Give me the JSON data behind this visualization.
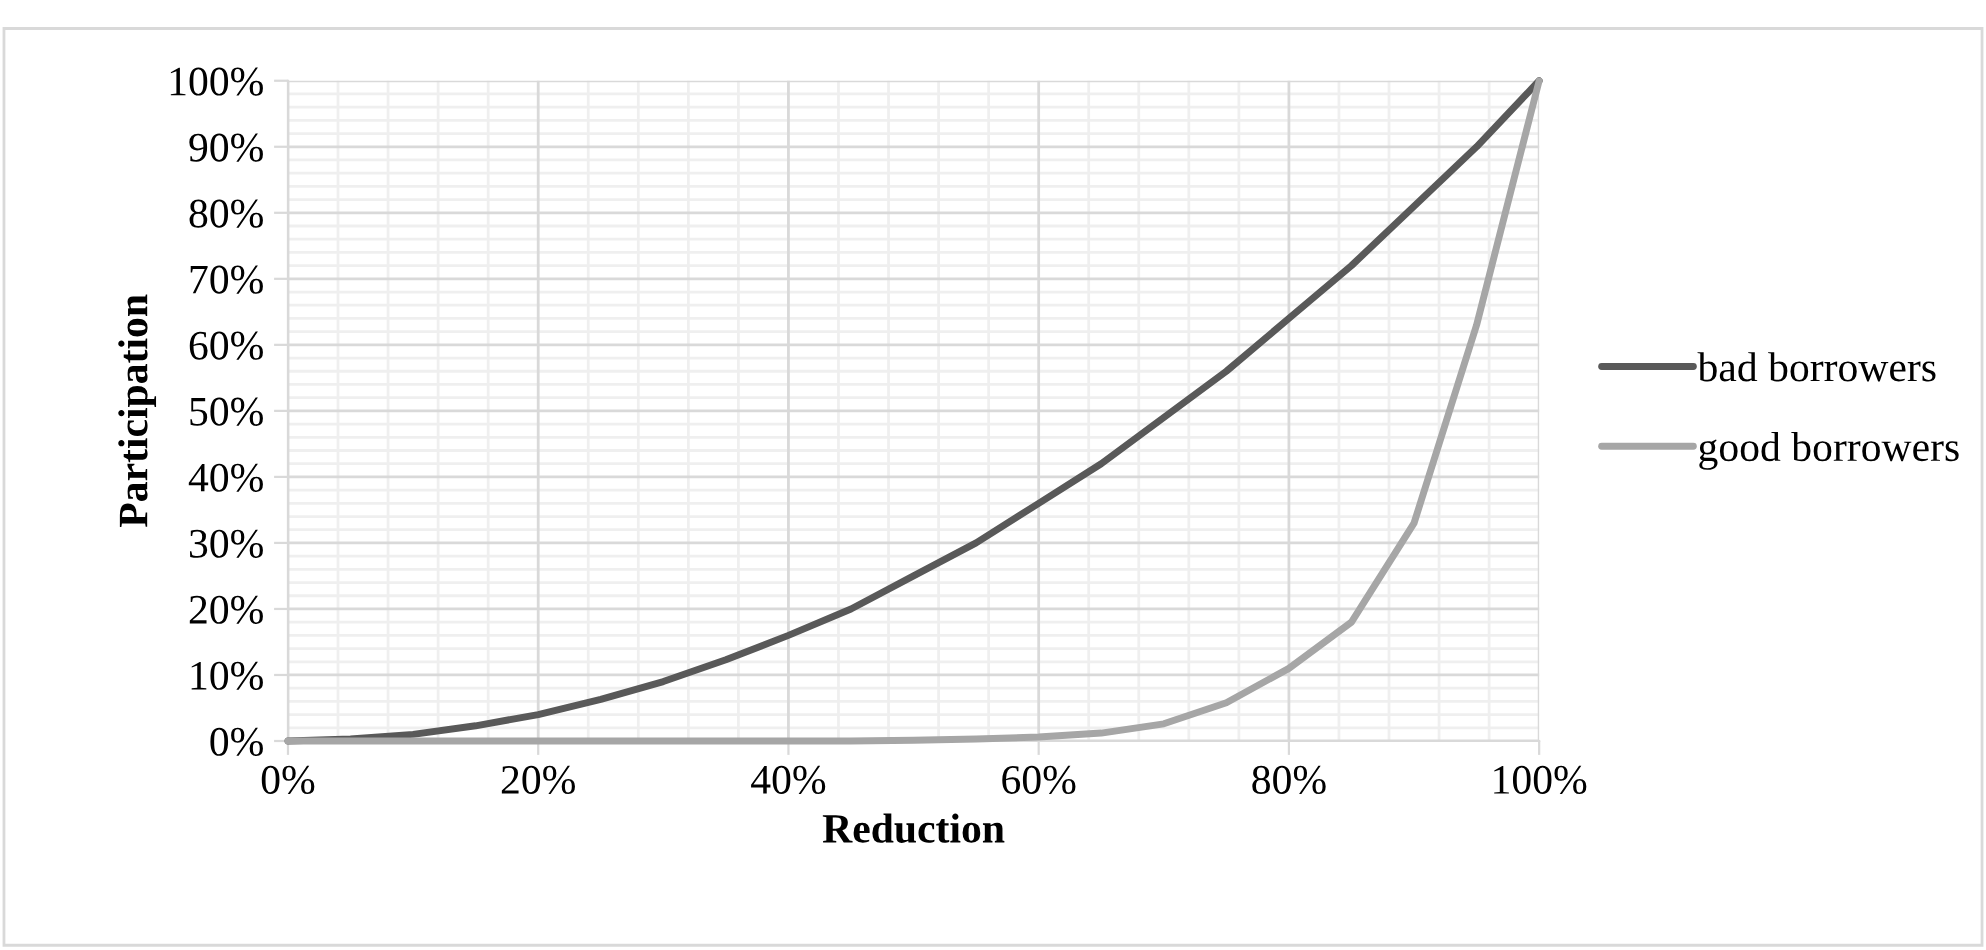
{
  "chart_data": {
    "type": "line",
    "xlabel": "Reduction",
    "ylabel": "Participation",
    "x": [
      0,
      5,
      10,
      15,
      20,
      25,
      30,
      35,
      40,
      45,
      50,
      55,
      60,
      65,
      70,
      75,
      80,
      85,
      90,
      95,
      100
    ],
    "series": [
      {
        "name": "bad borrowers",
        "color": "#595959",
        "values": [
          0,
          0.3,
          1,
          2.3,
          4,
          6.3,
          9,
          12.3,
          16,
          20,
          25,
          30,
          36,
          42,
          49,
          56,
          64,
          72,
          81,
          90,
          100
        ]
      },
      {
        "name": "good borrowers",
        "color": "#a6a6a6",
        "values": [
          0,
          0,
          0,
          0,
          0,
          0,
          0,
          0,
          0,
          0,
          0.1,
          0.3,
          0.6,
          1.2,
          2.6,
          5.8,
          11,
          18,
          33,
          63,
          100
        ]
      }
    ],
    "xlim": [
      0,
      100
    ],
    "xticks": [
      {
        "value": 0,
        "label": "0%"
      },
      {
        "value": 20,
        "label": "20%"
      },
      {
        "value": 40,
        "label": "40%"
      },
      {
        "value": 60,
        "label": "60%"
      },
      {
        "value": 80,
        "label": "80%"
      },
      {
        "value": 100,
        "label": "100%"
      }
    ],
    "ylim": [
      0,
      100
    ],
    "yticks": [
      {
        "value": 0,
        "label": "0%"
      },
      {
        "value": 10,
        "label": "10%"
      },
      {
        "value": 20,
        "label": "20%"
      },
      {
        "value": 30,
        "label": "30%"
      },
      {
        "value": 40,
        "label": "40%"
      },
      {
        "value": 50,
        "label": "50%"
      },
      {
        "value": 60,
        "label": "60%"
      },
      {
        "value": 70,
        "label": "70%"
      },
      {
        "value": 80,
        "label": "80%"
      },
      {
        "value": 90,
        "label": "90%"
      },
      {
        "value": 100,
        "label": "100%"
      }
    ],
    "grid": true,
    "legend": "right",
    "marker": "none",
    "line_style": "solid"
  }
}
